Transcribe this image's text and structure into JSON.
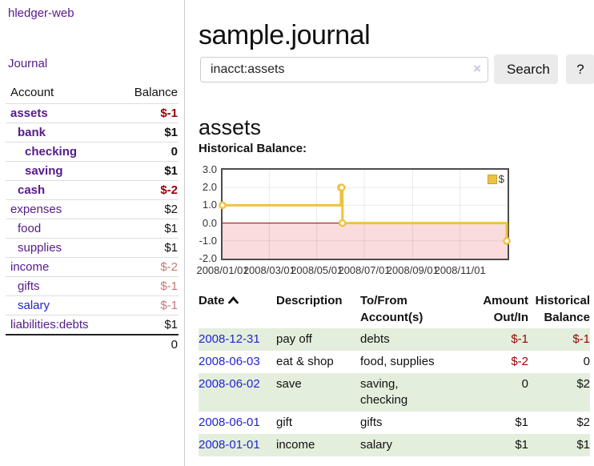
{
  "app": {
    "title": "hledger-web"
  },
  "colors": {
    "link_purple": "#551a8b",
    "link_blue": "#2323d3",
    "neg_strong": "#990000",
    "neg_soft": "#c57878",
    "stripe_green": "#e3efdc",
    "button_bg": "#ebebeb",
    "chart_line": "#edc240",
    "chart_negative_region": "#fbdcdc",
    "chart_zero_line": "#8b0000",
    "divider": "#cccccc"
  },
  "sidebar": {
    "journal_label": "Journal",
    "table": {
      "account_header": "Account",
      "balance_header": "Balance",
      "rows": [
        {
          "name": "assets",
          "balance": "$-1",
          "indent": 1,
          "emph": true,
          "neg": "strong"
        },
        {
          "name": "bank",
          "balance": "$1",
          "indent": 2,
          "emph": true,
          "neg": "none"
        },
        {
          "name": "checking",
          "balance": "0",
          "indent": 3,
          "emph": true,
          "neg": "none"
        },
        {
          "name": "saving",
          "balance": "$1",
          "indent": 3,
          "emph": true,
          "neg": "none"
        },
        {
          "name": "cash",
          "balance": "$-2",
          "indent": 2,
          "emph": true,
          "neg": "strong"
        },
        {
          "name": "expenses",
          "balance": "$2",
          "indent": 1,
          "emph": false,
          "neg": "none"
        },
        {
          "name": "food",
          "balance": "$1",
          "indent": 2,
          "emph": false,
          "neg": "none"
        },
        {
          "name": "supplies",
          "balance": "$1",
          "indent": 2,
          "emph": false,
          "neg": "none"
        },
        {
          "name": "income",
          "balance": "$-2",
          "indent": 1,
          "emph": false,
          "neg": "soft"
        },
        {
          "name": "gifts",
          "balance": "$-1",
          "indent": 2,
          "emph": false,
          "neg": "soft"
        },
        {
          "name": "salary",
          "balance": "$-1",
          "indent": 2,
          "emph": false,
          "neg": "soft",
          "link_color": "blue"
        },
        {
          "name": "liabilities:debts",
          "balance": "$1",
          "indent": 1,
          "emph": false,
          "neg": "none"
        }
      ],
      "total": "0"
    }
  },
  "main": {
    "title": "sample.journal",
    "search": {
      "value": "inacct:assets",
      "clear_icon": "×",
      "button_label": "Search",
      "help_label": "?"
    },
    "account_heading": "assets",
    "chart_label": "Historical Balance:"
  },
  "chart_data": {
    "type": "line",
    "style": "step-after",
    "title": "Historical Balance:",
    "series": [
      {
        "name": "$",
        "color": "#edc240",
        "points": [
          {
            "date": "2008-01-01",
            "value": 1
          },
          {
            "date": "2008-06-01",
            "value": 2
          },
          {
            "date": "2008-06-02",
            "value": 2
          },
          {
            "date": "2008-06-03",
            "value": 0
          },
          {
            "date": "2008-12-31",
            "value": -1
          }
        ]
      }
    ],
    "x_range": [
      "2008-01-01",
      "2009-01-01"
    ],
    "ylim": [
      -2,
      3
    ],
    "x_ticks": [
      "2008/01/01",
      "2008/03/01",
      "2008/05/01",
      "2008/07/01",
      "2008/09/01",
      "2008/11/01"
    ],
    "y_ticks": [
      "3.0",
      "2.0",
      "1.0",
      "0.0",
      "-1.0",
      "-2.0"
    ],
    "grid": true,
    "legend_position": "top-right",
    "legend_label": "$",
    "negative_region_shaded": true
  },
  "register": {
    "headers": {
      "date": "Date",
      "description": "Description",
      "accounts": [
        "To/From",
        "Account(s)"
      ],
      "amount": [
        "Amount",
        "Out/In"
      ],
      "balance": [
        "Historical",
        "Balance"
      ]
    },
    "sort": {
      "column": "date",
      "direction": "ascending"
    },
    "rows": [
      {
        "date": "2008-12-31",
        "description": "pay off",
        "accounts": [
          "debts"
        ],
        "amount": "$-1",
        "amount_neg": true,
        "balance": "$-1",
        "balance_neg": true
      },
      {
        "date": "2008-06-03",
        "description": "eat & shop",
        "accounts": [
          "food, supplies"
        ],
        "amount": "$-2",
        "amount_neg": true,
        "balance": "0",
        "balance_neg": false
      },
      {
        "date": "2008-06-02",
        "description": "save",
        "accounts": [
          "saving,",
          "checking"
        ],
        "amount": "0",
        "amount_neg": false,
        "balance": "$2",
        "balance_neg": false
      },
      {
        "date": "2008-06-01",
        "description": "gift",
        "accounts": [
          "gifts"
        ],
        "amount": "$1",
        "amount_neg": false,
        "balance": "$2",
        "balance_neg": false
      },
      {
        "date": "2008-01-01",
        "description": "income",
        "accounts": [
          "salary"
        ],
        "amount": "$1",
        "amount_neg": false,
        "balance": "$1",
        "balance_neg": false
      }
    ]
  }
}
